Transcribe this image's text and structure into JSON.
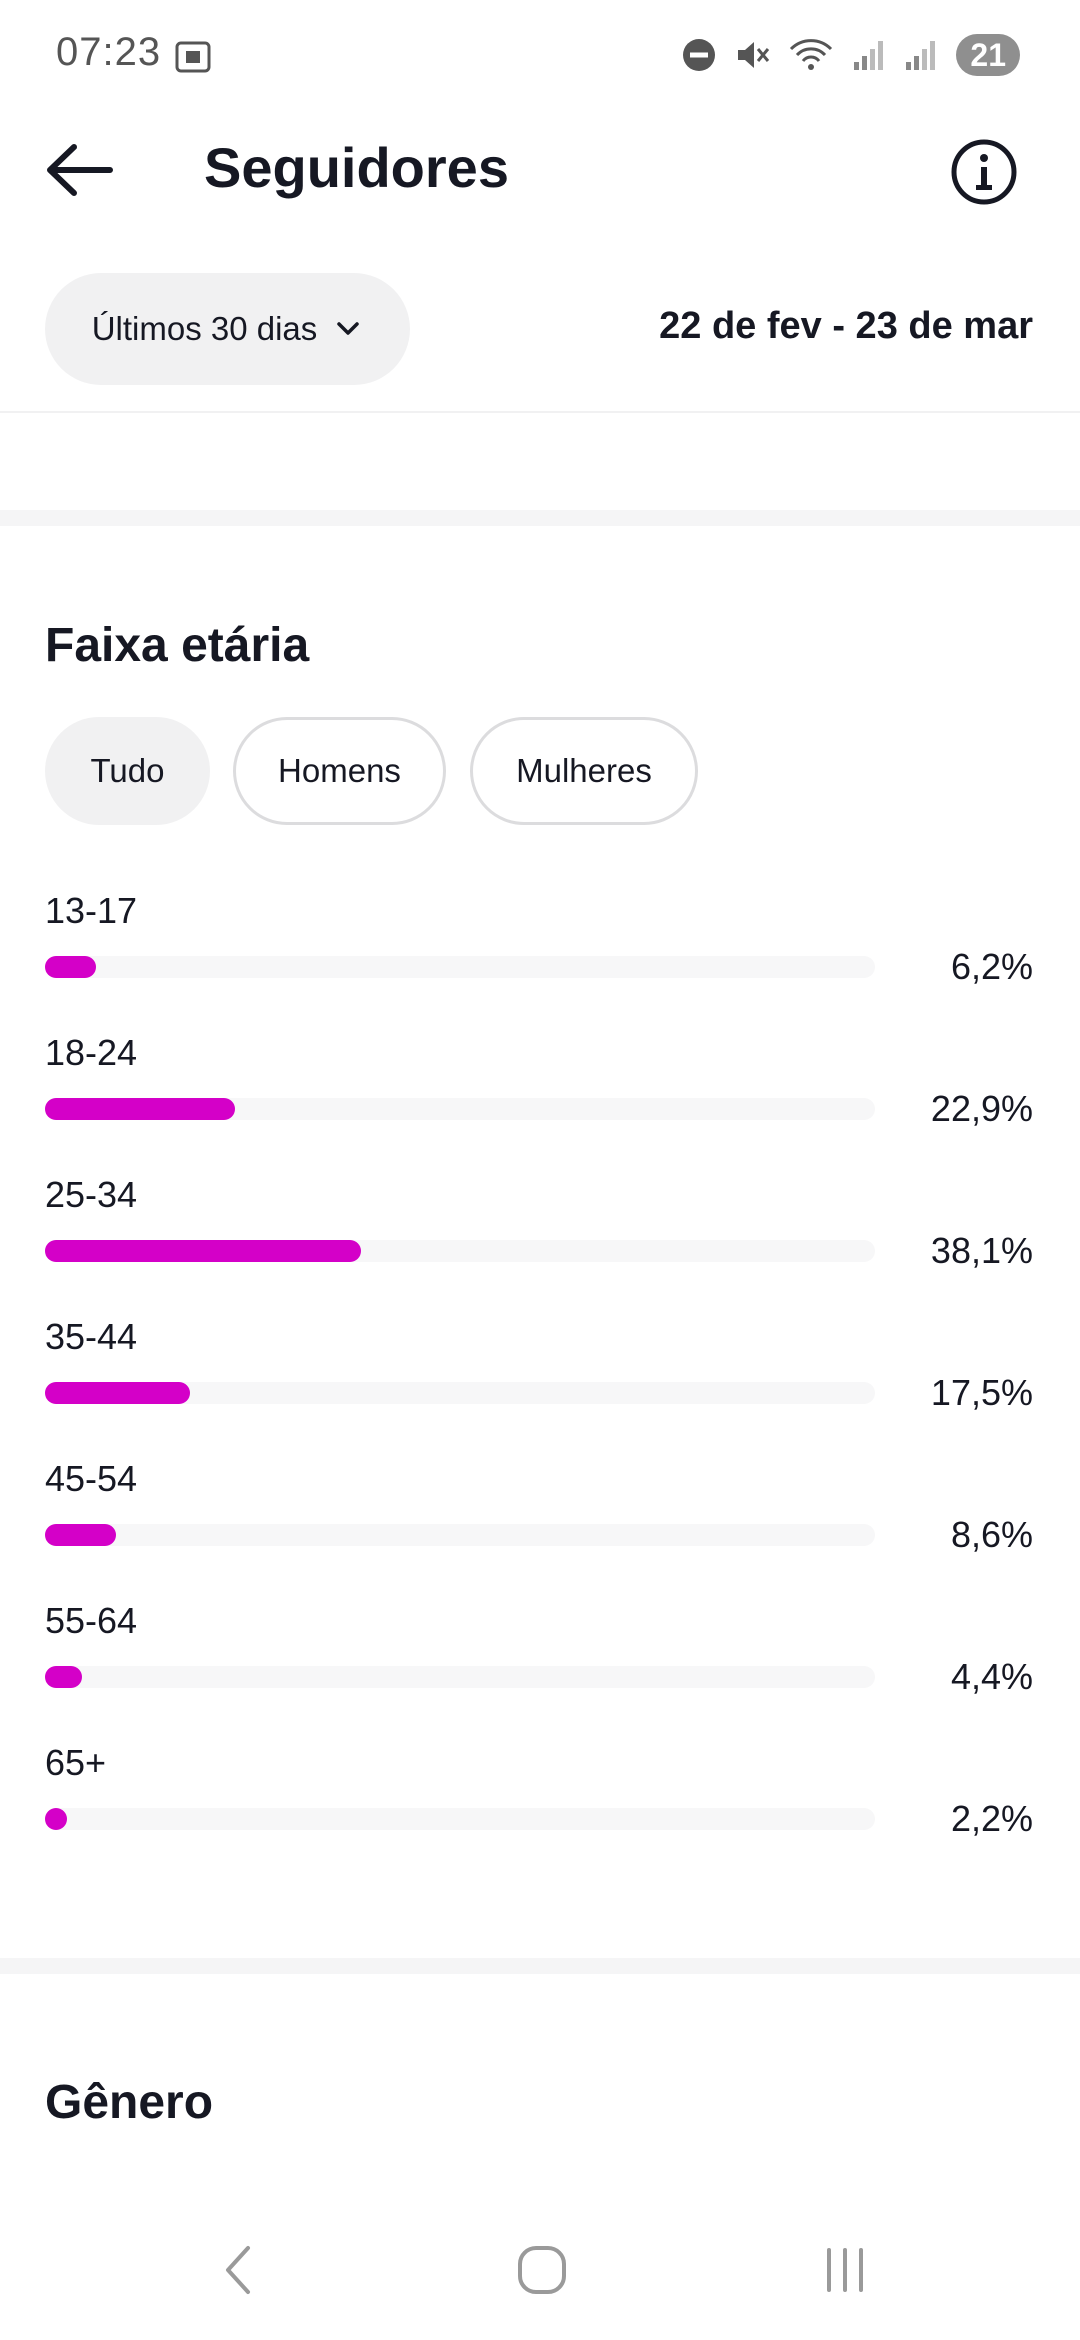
{
  "status_bar": {
    "time": "07:23",
    "battery": "21",
    "icons": [
      "screenshot-icon",
      "dnd-icon",
      "mute-icon",
      "wifi-icon",
      "signal-icon",
      "signal-icon"
    ]
  },
  "header": {
    "title": "Seguidores",
    "back_icon": "arrow-left-icon",
    "info_icon": "info-icon"
  },
  "filter": {
    "period_label": "Últimos 30 dias",
    "date_range": "22 de fev - 23 de mar"
  },
  "age_section": {
    "title": "Faixa etária",
    "chips": [
      {
        "label": "Tudo",
        "active": true
      },
      {
        "label": "Homens",
        "active": false
      },
      {
        "label": "Mulheres",
        "active": false
      }
    ]
  },
  "chart_data": {
    "type": "bar",
    "orientation": "horizontal",
    "categories": [
      "13-17",
      "18-24",
      "25-34",
      "35-44",
      "45-54",
      "55-64",
      "65+"
    ],
    "values": [
      6.2,
      22.9,
      38.1,
      17.5,
      8.6,
      4.4,
      2.2
    ],
    "value_labels": [
      "6,2%",
      "22,9%",
      "38,1%",
      "17,5%",
      "8,6%",
      "4,4%",
      "2,2%"
    ],
    "unit": "%",
    "xlim": [
      0,
      100
    ],
    "bar_color": "#d400c8",
    "track_color": "#f7f7f8"
  },
  "gender_section": {
    "title": "Gênero"
  },
  "nav_bar": {
    "icons": [
      "nav-back-icon",
      "nav-home-icon",
      "nav-recents-icon"
    ]
  },
  "colors": {
    "accent": "#d400c8",
    "text": "#161823",
    "chip_bg": "#f1f1f2"
  }
}
